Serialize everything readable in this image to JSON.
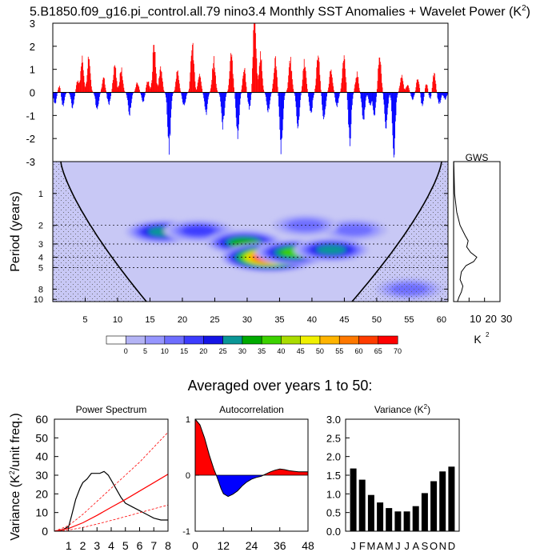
{
  "chart_data": [
    {
      "id": "sst",
      "type": "bar",
      "title": "5.B1850.f09_g16.pi_control.all.79 nino3.4 Monthly SST Anomalies + Wavelet Power (K",
      "title_sup": "2",
      "title_end": ")",
      "x_range": [
        0,
        61
      ],
      "ylim": [
        -3,
        3
      ],
      "yticks": [
        "3",
        "2",
        "1",
        "0",
        "-1",
        "-2",
        "-3"
      ],
      "ytick_values": [
        3,
        2,
        1,
        0,
        -1,
        -2,
        -3
      ],
      "positive_color": "#ff0000",
      "negative_color": "#0000ff",
      "note": "monthly anomaly series (K), peak values per event read from plot",
      "events": [
        [
          0.3,
          -0.5
        ],
        [
          1.0,
          0.3
        ],
        [
          1.5,
          -0.6
        ],
        [
          3.0,
          -0.6
        ],
        [
          3.8,
          0.5
        ],
        [
          4.5,
          1.4
        ],
        [
          5.5,
          1.6
        ],
        [
          6.8,
          -0.8
        ],
        [
          7.8,
          0.6
        ],
        [
          8.6,
          -0.5
        ],
        [
          9.5,
          1.2
        ],
        [
          10.5,
          1.0
        ],
        [
          11.8,
          -0.9
        ],
        [
          13.0,
          0.4
        ],
        [
          13.9,
          -0.4
        ],
        [
          14.6,
          0.5
        ],
        [
          15.6,
          2.1
        ],
        [
          16.6,
          1.1
        ],
        [
          17.9,
          -2.3
        ],
        [
          19.2,
          0.9
        ],
        [
          20.2,
          -0.6
        ],
        [
          21.5,
          2.2
        ],
        [
          22.6,
          0.8
        ],
        [
          23.6,
          -0.9
        ],
        [
          24.8,
          1.4
        ],
        [
          26.2,
          -1.4
        ],
        [
          27.5,
          1.6
        ],
        [
          28.5,
          -1.8
        ],
        [
          29.5,
          1.0
        ],
        [
          30.3,
          -0.7
        ],
        [
          31.1,
          3.3
        ],
        [
          32.0,
          1.6
        ],
        [
          33.2,
          -0.8
        ],
        [
          34.3,
          1.4
        ],
        [
          35.2,
          -2.5
        ],
        [
          36.6,
          1.4
        ],
        [
          37.8,
          -1.5
        ],
        [
          38.8,
          1.3
        ],
        [
          39.8,
          -0.9
        ],
        [
          40.9,
          1.6
        ],
        [
          41.8,
          -1.2
        ],
        [
          42.9,
          1.0
        ],
        [
          43.8,
          -0.6
        ],
        [
          44.9,
          1.7
        ],
        [
          45.8,
          -2.0
        ],
        [
          46.9,
          0.8
        ],
        [
          47.9,
          -1.2
        ],
        [
          48.9,
          -0.5
        ],
        [
          49.6,
          -0.9
        ],
        [
          50.4,
          1.6
        ],
        [
          51.4,
          -1.6
        ],
        [
          52.6,
          -2.4
        ],
        [
          53.8,
          0.7
        ],
        [
          54.7,
          0.3
        ],
        [
          55.5,
          -0.3
        ],
        [
          56.3,
          0.6
        ],
        [
          57.0,
          -0.6
        ],
        [
          57.6,
          0.4
        ],
        [
          58.2,
          -0.3
        ],
        [
          58.8,
          0.8
        ],
        [
          59.6,
          -0.5
        ],
        [
          60.5,
          -0.3
        ]
      ]
    },
    {
      "id": "wavelet",
      "type": "heatmap",
      "ylabel": "Period (years)",
      "x_range": [
        0,
        61
      ],
      "xticks": [
        "5",
        "10",
        "15",
        "20",
        "25",
        "30",
        "35",
        "40",
        "45",
        "50",
        "55",
        "60"
      ],
      "xtick_values": [
        5,
        10,
        15,
        20,
        25,
        30,
        35,
        40,
        45,
        50,
        55,
        60
      ],
      "y_range_period": [
        0.5,
        10.5
      ],
      "yticks": [
        "1",
        "2",
        "3",
        "4",
        "5",
        "8",
        "10"
      ],
      "ytick_values": [
        1,
        2,
        3,
        4,
        5,
        8,
        10
      ],
      "dashed_periods": [
        2,
        3,
        4,
        5
      ],
      "cone_of_influence": "black curve, stippled outside",
      "background_color": "#c8c8f5",
      "blobs_note": "wavelet power peaks (time, period, peak power K^2)",
      "blobs": [
        {
          "t": 17,
          "p": 2.3,
          "power": 28
        },
        {
          "t": 22.5,
          "p": 2.25,
          "power": 18
        },
        {
          "t": 29.5,
          "p": 2.9,
          "power": 30
        },
        {
          "t": 33.5,
          "p": 4.0,
          "power": 68
        },
        {
          "t": 37.5,
          "p": 3.6,
          "power": 38
        },
        {
          "t": 43,
          "p": 3.4,
          "power": 28
        },
        {
          "t": 46.5,
          "p": 2.2,
          "power": 12
        },
        {
          "t": 39,
          "p": 2.0,
          "power": 12
        },
        {
          "t": 55,
          "p": 8.0,
          "power": 14
        }
      ]
    },
    {
      "id": "gws",
      "type": "line",
      "title": "GWS",
      "xlabel": "K",
      "xlabel_sup": "2",
      "xlim": [
        0,
        30
      ],
      "xticks": [
        "10",
        "20",
        "30"
      ],
      "xtick_values": [
        10,
        20,
        30
      ],
      "period": [
        0.5,
        1.0,
        1.5,
        2.0,
        2.5,
        2.8,
        3.2,
        3.6,
        4.0,
        4.4,
        4.8,
        5.5,
        6.5,
        7.5,
        8.5,
        9.5,
        10.5
      ],
      "power": [
        0.1,
        0.6,
        2.0,
        4.2,
        7.5,
        9.4,
        8.5,
        11.0,
        15.0,
        13.0,
        8.0,
        5.0,
        4.2,
        6.0,
        5.0,
        3.5,
        2.5
      ]
    },
    {
      "id": "spectrum",
      "type": "line",
      "title": "Power Spectrum",
      "ylabel": "Variance (K",
      "ylabel_sup": "2",
      "ylabel_end": "/unit freq.)",
      "xlim": [
        0,
        8
      ],
      "ylim": [
        0,
        60
      ],
      "xticks": [
        "1",
        "2",
        "3",
        "4",
        "5",
        "6",
        "7",
        "8"
      ],
      "xtick_values": [
        1,
        2,
        3,
        4,
        5,
        6,
        7,
        8
      ],
      "yticks": [
        "0",
        "10",
        "20",
        "30",
        "40",
        "50",
        "60"
      ],
      "ytick_values": [
        0,
        10,
        20,
        30,
        40,
        50,
        60
      ],
      "series": [
        {
          "name": "spectrum",
          "color": "#000000",
          "dash": false,
          "x": [
            0,
            0.5,
            1.0,
            1.2,
            1.5,
            1.8,
            2.0,
            2.3,
            2.6,
            2.9,
            3.2,
            3.5,
            3.8,
            4.1,
            4.4,
            4.7,
            5.0,
            5.5,
            6.0,
            6.5,
            7.0,
            7.5,
            8.0
          ],
          "y": [
            0,
            0.5,
            2.5,
            8,
            17,
            23,
            26,
            28,
            31,
            31,
            31,
            32,
            30,
            26,
            22,
            18,
            15,
            13,
            11,
            9,
            7,
            6,
            6
          ]
        },
        {
          "name": "red-noise",
          "color": "#ff0000",
          "dash": false,
          "x": [
            0,
            1,
            2,
            3,
            4,
            5,
            6,
            7,
            8
          ],
          "y": [
            0,
            1.5,
            4.5,
            8.5,
            12.8,
            17,
            21.5,
            26,
            30.5
          ]
        },
        {
          "name": "upper-95",
          "color": "#ff0000",
          "dash": true,
          "x": [
            0,
            1,
            2,
            3,
            4,
            5,
            6,
            7,
            8
          ],
          "y": [
            0,
            3,
            9,
            16,
            23,
            30,
            37,
            45,
            53
          ]
        },
        {
          "name": "lower-5",
          "color": "#ff0000",
          "dash": true,
          "x": [
            0,
            1,
            2,
            3,
            4,
            5,
            6,
            7,
            8
          ],
          "y": [
            0,
            0.6,
            2,
            3.8,
            5.8,
            7.8,
            9.9,
            12,
            14
          ]
        }
      ]
    },
    {
      "id": "autocorr",
      "type": "area",
      "title": "Autocorrelation",
      "xlim": [
        0,
        48
      ],
      "ylim": [
        -1,
        1
      ],
      "xticks": [
        "0",
        "12",
        "24",
        "36",
        "48"
      ],
      "xtick_values": [
        0,
        12,
        24,
        36,
        48
      ],
      "yticks": [
        "1",
        "0",
        "-1"
      ],
      "ytick_values": [
        1,
        0,
        -1
      ],
      "x": [
        0,
        2,
        4,
        6,
        8,
        9,
        10,
        11,
        12,
        14,
        16,
        18,
        20,
        22,
        24,
        26,
        28,
        29,
        30,
        32,
        34,
        36,
        38,
        40,
        42,
        44,
        46,
        48
      ],
      "y": [
        1.0,
        0.9,
        0.66,
        0.36,
        0.1,
        0.0,
        -0.12,
        -0.24,
        -0.33,
        -0.38,
        -0.34,
        -0.28,
        -0.19,
        -0.12,
        -0.07,
        -0.04,
        -0.02,
        0.0,
        0.02,
        0.06,
        0.09,
        0.11,
        0.1,
        0.08,
        0.07,
        0.06,
        0.06,
        0.06
      ],
      "positive_color": "#ff0000",
      "negative_color": "#0000ff"
    },
    {
      "id": "variance",
      "type": "bar",
      "title": "Variance (K",
      "title_sup": "2",
      "title_end": ")",
      "categories": [
        "J",
        "F",
        "M",
        "A",
        "M",
        "J",
        "J",
        "A",
        "S",
        "O",
        "N",
        "D"
      ],
      "values": [
        1.68,
        1.38,
        0.97,
        0.77,
        0.62,
        0.53,
        0.53,
        0.67,
        1.02,
        1.34,
        1.6,
        1.73
      ],
      "ylim": [
        0,
        3.0
      ],
      "yticks": [
        "0.0",
        "0.5",
        "1.0",
        "1.5",
        "2.0",
        "2.5",
        "3.0"
      ],
      "ytick_values": [
        0,
        0.5,
        1.0,
        1.5,
        2.0,
        2.5,
        3.0
      ],
      "bar_color": "#000000"
    }
  ],
  "colorbar": {
    "labels": [
      "0",
      "5",
      "10",
      "15",
      "20",
      "25",
      "30",
      "35",
      "40",
      "45",
      "50",
      "55",
      "60",
      "65",
      "70"
    ],
    "colors": [
      "#ffffff",
      "#b4b4f5",
      "#9696ff",
      "#6e6eff",
      "#3c3cff",
      "#1414e6",
      "#0a9696",
      "#00aa00",
      "#3cd200",
      "#aadc00",
      "#f0f000",
      "#ffb400",
      "#ff7800",
      "#ff3c00",
      "#ff0000"
    ]
  },
  "subtitle": "Averaged over years 1 to 50:"
}
